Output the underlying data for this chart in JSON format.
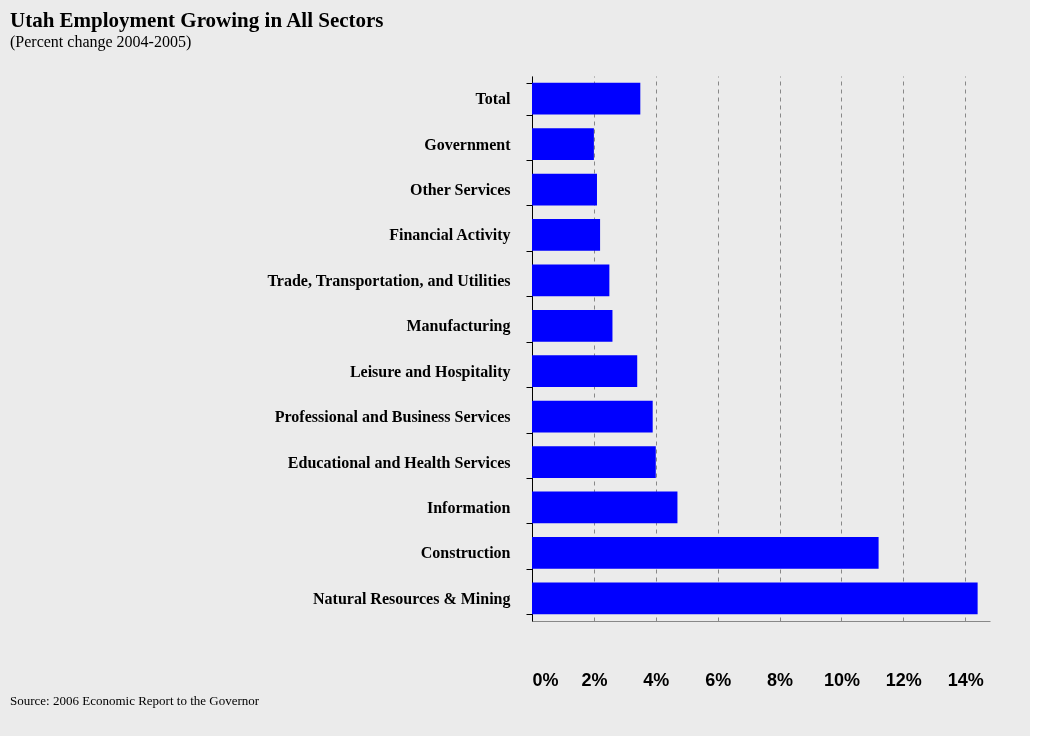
{
  "chart_data": {
    "type": "bar",
    "orientation": "horizontal",
    "title": "Utah Employment Growing in All Sectors",
    "subtitle": "(Percent change 2004-2005)",
    "categories": [
      "Total",
      "Government",
      "Other Services",
      "Financial Activity",
      "Trade, Transportation, and Utilities",
      "Manufacturing",
      "Leisure and Hospitality",
      "Professional and Business Services",
      "Educational and Health Services",
      "Information",
      "Construction",
      "Natural Resources & Mining"
    ],
    "values": [
      3.5,
      2.0,
      2.1,
      2.2,
      2.5,
      2.6,
      3.4,
      3.9,
      4.0,
      4.7,
      11.2,
      14.4
    ],
    "color": "#0000ff",
    "xlim": [
      0,
      14.8
    ],
    "xticks": [
      {
        "value": 0,
        "label": "0%"
      },
      {
        "value": 2,
        "label": "2%"
      },
      {
        "value": 4,
        "label": "4%"
      },
      {
        "value": 6,
        "label": "6%"
      },
      {
        "value": 8,
        "label": "8%"
      },
      {
        "value": 10,
        "label": "10%"
      },
      {
        "value": 12,
        "label": "12%"
      },
      {
        "value": 14,
        "label": "14%"
      }
    ],
    "grid": "x",
    "annotations": [
      "Source: 2006 Economic Report to the Governor"
    ]
  }
}
